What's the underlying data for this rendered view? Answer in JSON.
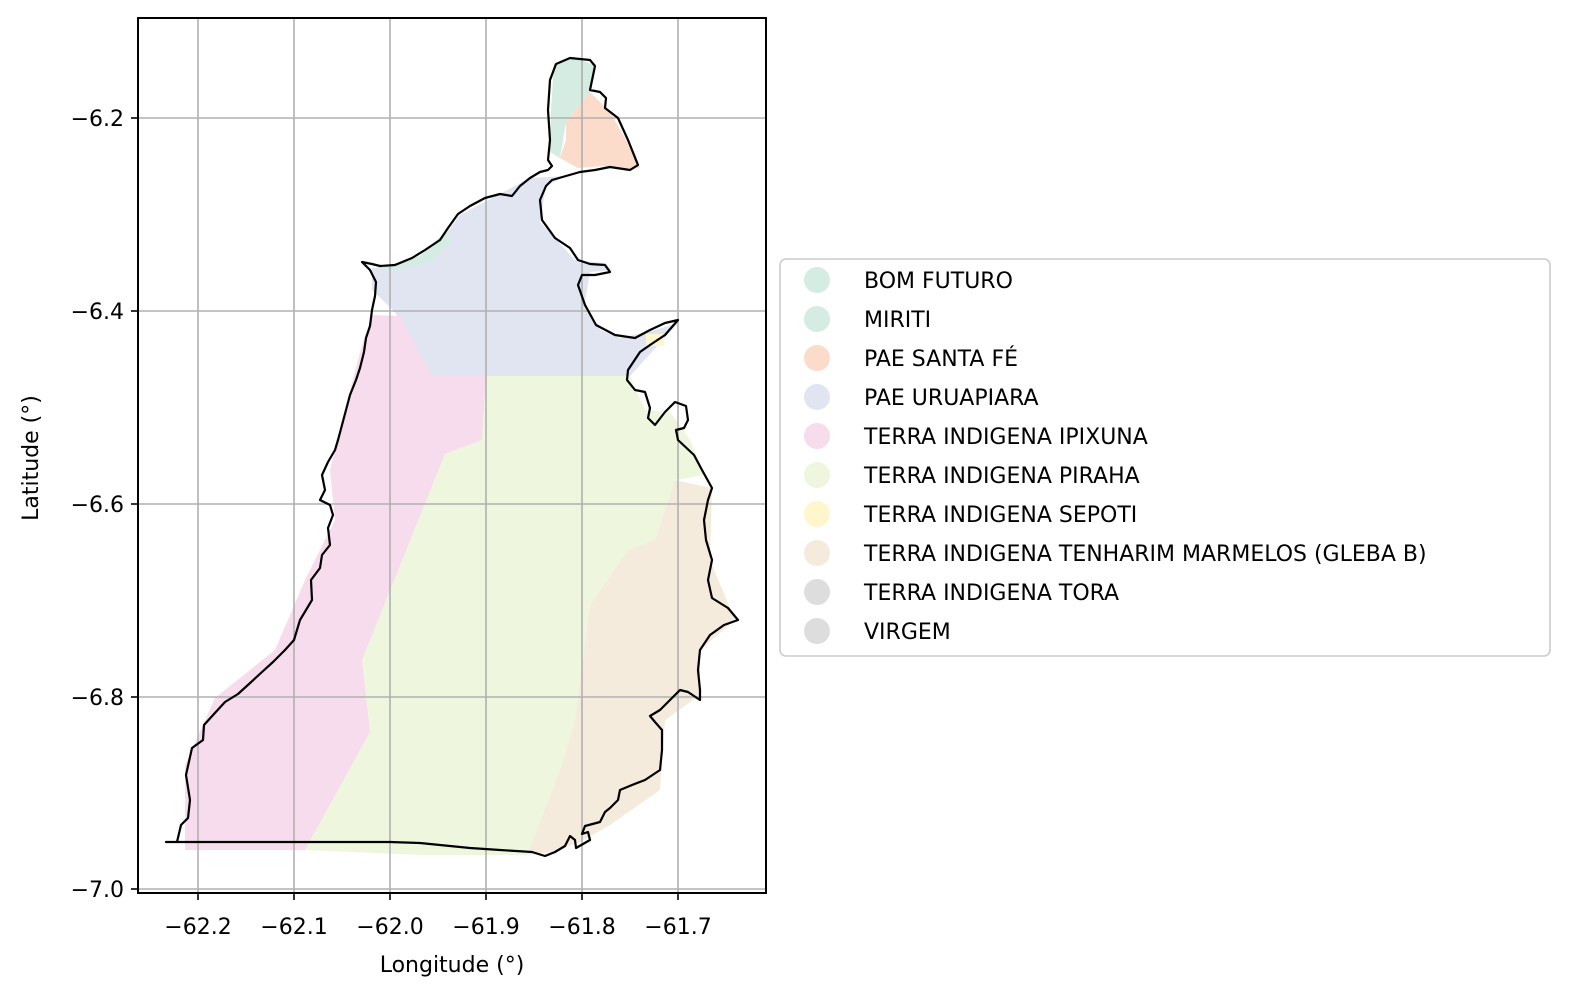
{
  "map": {
    "x_axis": {
      "label": "Longitude (°)",
      "range": [
        -62.265,
        -61.615
      ],
      "ticks": [
        -62.2,
        -62.1,
        -62.0,
        -61.9,
        -61.8,
        -61.7
      ],
      "tick_labels": [
        "−62.2",
        "−62.1",
        "−62.0",
        "−61.9",
        "−61.8",
        "−61.7"
      ]
    },
    "y_axis": {
      "label": "Latitude (°)",
      "range": [
        -7.005,
        -6.095
      ],
      "ticks": [
        -6.2,
        -6.4,
        -6.6,
        -6.8,
        -7.0
      ],
      "tick_labels": [
        "−6.2",
        "−6.4",
        "−6.6",
        "−6.8",
        "−7.0"
      ]
    },
    "grid": true,
    "legend_position": "right, outside plot area",
    "legend": [
      {
        "name": "BOM FUTURO",
        "color": "#d4ece1"
      },
      {
        "name": "MIRITI",
        "color": "#d4ece1"
      },
      {
        "name": "PAE SANTA FÉ",
        "color": "#fbdcca"
      },
      {
        "name": "PAE URUAPIARA",
        "color": "#e0e5f1"
      },
      {
        "name": "TERRA INDIGENA IPIXUNA",
        "color": "#f6dced"
      },
      {
        "name": "TERRA INDIGENA PIRAHA",
        "color": "#eef7de"
      },
      {
        "name": "TERRA INDIGENA SEPOTI",
        "color": "#fff6cd"
      },
      {
        "name": "TERRA INDIGENA TENHARIM MARMELOS (GLEBA B)",
        "color": "#f4ebdd"
      },
      {
        "name": "TERRA INDIGENA TORA",
        "color": "#dddddd"
      },
      {
        "name": "VIRGEM",
        "color": "#dddddd"
      }
    ]
  }
}
